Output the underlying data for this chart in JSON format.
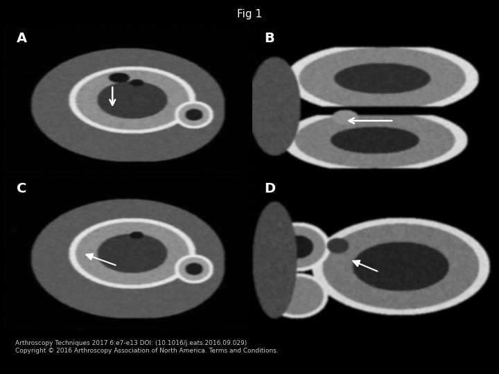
{
  "title": "Fig 1",
  "title_fontsize": 11,
  "title_color": "white",
  "background_color": "black",
  "panel_label_color": "white",
  "panel_label_fontsize": 14,
  "caption_line1": "Arthroscopy Techniques 2017 6:e7-e13 DOI: (10.1016/j.eats.2016.09.029)",
  "caption_line2": "Copyright © 2016 Arthroscopy Association of North America. Terms and Conditions.",
  "caption_color": "#cccccc",
  "caption_fontsize": 6.5,
  "caption_underline": "Terms and Conditions",
  "arrow_color": "white"
}
